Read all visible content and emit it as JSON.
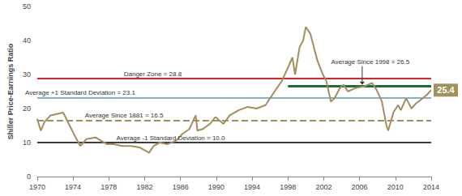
{
  "chart_data": {
    "type": "line",
    "y_label": "Shiller Price-Earnings Ratio",
    "color": "#a38d5d",
    "x": [
      1970.0,
      1970.4,
      1970.8,
      1971.5,
      1972.9,
      1974.0,
      1974.8,
      1975.5,
      1976.5,
      1977.8,
      1978.5,
      1979.5,
      1980.5,
      1981.5,
      1982.5,
      1983.0,
      1983.7,
      1984.5,
      1985.5,
      1986.2,
      1987.0,
      1987.7,
      1987.9,
      1988.5,
      1989.3,
      1989.9,
      1990.8,
      1991.5,
      1992.5,
      1993.5,
      1994.5,
      1995.5,
      1996.5,
      1997.3,
      1998.0,
      1998.5,
      1998.8,
      1999.3,
      1999.7,
      2000.0,
      2000.5,
      2000.9,
      2001.3,
      2001.9,
      2002.3,
      2002.8,
      2003.2,
      2003.8,
      2004.2,
      2004.7,
      2005.5,
      2006.5,
      2007.4,
      2007.9,
      2008.5,
      2009.0,
      2009.2,
      2009.8,
      2010.3,
      2010.6,
      2011.2,
      2011.8,
      2012.3,
      2012.8,
      2013.5,
      2014.0
    ],
    "values": [
      17.0,
      13.5,
      16.0,
      18.0,
      18.8,
      13.0,
      9.0,
      11.0,
      11.5,
      9.5,
      9.5,
      9.0,
      9.0,
      8.5,
      7.0,
      9.0,
      10.0,
      9.5,
      10.5,
      12.5,
      14.0,
      18.0,
      13.5,
      14.0,
      15.5,
      17.5,
      15.5,
      18.0,
      19.5,
      20.5,
      20.0,
      21.0,
      25.0,
      28.0,
      32.0,
      35.0,
      30.0,
      38.0,
      40.0,
      44.0,
      42.0,
      38.0,
      34.0,
      30.0,
      28.0,
      22.0,
      23.0,
      26.0,
      27.0,
      25.0,
      26.0,
      26.5,
      27.5,
      25.5,
      22.0,
      15.0,
      13.5,
      19.0,
      21.0,
      19.5,
      23.0,
      20.0,
      21.5,
      22.5,
      24.0,
      25.4
    ],
    "xlim": [
      1970,
      2014
    ],
    "xticks": [
      1970,
      1974,
      1978,
      1982,
      1986,
      1990,
      1994,
      1998,
      2002,
      2006,
      2010,
      2014
    ],
    "ylim": [
      0,
      50
    ],
    "yticks": [
      0,
      10,
      20,
      30,
      40,
      50
    ],
    "grid": false,
    "reference_lines": [
      {
        "label": "Danger Zone = 28.8",
        "value": 28.8,
        "color": "#d7252b",
        "line_style": "solid"
      },
      {
        "label": "Average +1 Standard Deviation = 23.1",
        "value": 23.1,
        "color": "#7fb3c8",
        "line_style": "solid"
      },
      {
        "label": "Average Since 1881 = 16.5",
        "value": 16.5,
        "color": "#a38d5d",
        "line_style": "dashed"
      },
      {
        "label": "Average -1 Standard Deviation = 10.0",
        "value": 10.0,
        "color": "#3f3f3f",
        "line_style": "solid"
      },
      {
        "label": "Average Since 1998 = 26.5",
        "value": 26.5,
        "from": 1998,
        "color": "#1f6b3c",
        "line_style": "solid"
      }
    ],
    "annotations": [
      {
        "text": "25.4",
        "x": 2014,
        "y": 25.4
      }
    ]
  }
}
